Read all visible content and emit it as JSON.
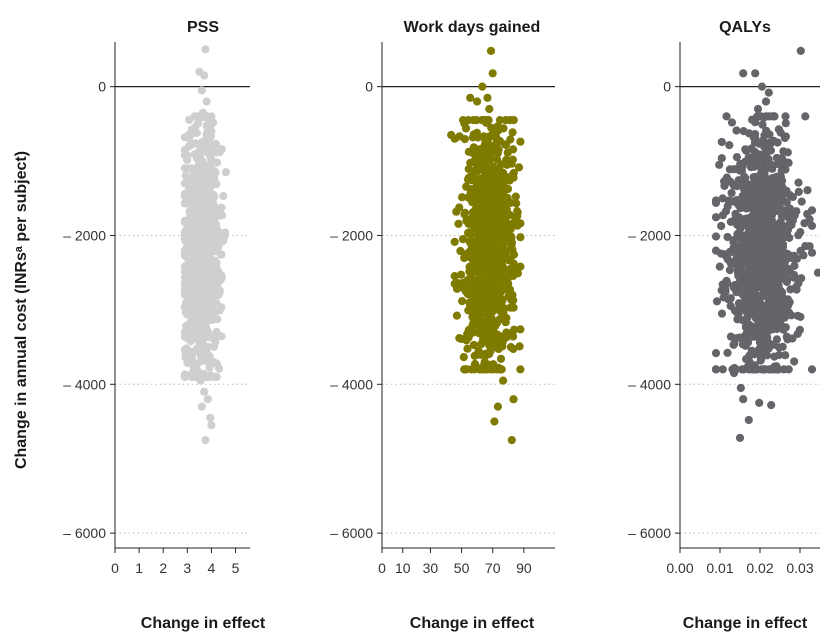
{
  "figure": {
    "ylabel": "Change in annual cost (INRsᵃ per subject)"
  },
  "chart_data": [
    {
      "type": "scatter",
      "title": "PSS",
      "xlabel": "Change in effect",
      "ylabel": "Change in annual cost (INRsᵃ per subject)",
      "xlim": [
        0,
        5.6
      ],
      "ylim": [
        -6200,
        600
      ],
      "xticks": [
        0,
        1,
        2,
        3,
        4,
        5
      ],
      "xtick_labels": [
        "0",
        "1",
        "2",
        "3",
        "4",
        "5"
      ],
      "yticks": [
        0,
        -2000,
        -4000,
        -6000
      ],
      "ytick_labels": [
        "0",
        "– 2000",
        "– 4000",
        "– 6000"
      ],
      "grid": "dotted horizontal at y ticks",
      "reference_line": 0,
      "color": "#cfcfcf",
      "cloud": {
        "x_center": 3.6,
        "x_spread": 0.38,
        "x_min": 2.9,
        "x_max": 4.6,
        "y_center": -2200,
        "y_spread": 820,
        "y_min": -3900,
        "y_max": -400
      },
      "outliers": [
        {
          "x": 3.75,
          "y": 500
        },
        {
          "x": 3.5,
          "y": 200
        },
        {
          "x": 3.7,
          "y": 150
        },
        {
          "x": 3.6,
          "y": -50
        },
        {
          "x": 3.8,
          "y": -200
        },
        {
          "x": 3.65,
          "y": -350
        },
        {
          "x": 4.6,
          "y": -1150
        },
        {
          "x": 3.55,
          "y": -3950
        },
        {
          "x": 3.7,
          "y": -4100
        },
        {
          "x": 3.85,
          "y": -4200
        },
        {
          "x": 3.6,
          "y": -4300
        },
        {
          "x": 3.95,
          "y": -4450
        },
        {
          "x": 4.0,
          "y": -4550
        },
        {
          "x": 3.75,
          "y": -4750
        }
      ]
    },
    {
      "type": "scatter",
      "title": "Work days gained",
      "xlabel": "Change in effect",
      "ylabel": "",
      "xlim": [
        0,
        100
      ],
      "ylim": [
        -6200,
        600
      ],
      "xticks": [
        0,
        10,
        30,
        50,
        70,
        90
      ],
      "xtick_labels": [
        "0",
        "10",
        "30",
        "50",
        "70",
        "90"
      ],
      "xtick_positions": [
        0,
        12,
        28,
        46,
        64,
        82
      ],
      "yticks": [
        0,
        -2000,
        -4000,
        -6000
      ],
      "ytick_labels": [
        "0",
        "– 2000",
        "– 4000",
        "– 6000"
      ],
      "grid": "dotted horizontal at y ticks",
      "reference_line": 0,
      "color": "#7f7a00",
      "cloud": {
        "x_center": 62,
        "x_spread": 7,
        "x_min": 42,
        "x_max": 80,
        "y_center": -2150,
        "y_spread": 800,
        "y_min": -3800,
        "y_max": -450
      },
      "outliers": [
        {
          "x": 63,
          "y": 480
        },
        {
          "x": 64,
          "y": 180
        },
        {
          "x": 58,
          "y": 0
        },
        {
          "x": 51,
          "y": -150
        },
        {
          "x": 55,
          "y": -200
        },
        {
          "x": 61,
          "y": -150
        },
        {
          "x": 62,
          "y": -300
        },
        {
          "x": 40,
          "y": -650
        },
        {
          "x": 42,
          "y": -700
        },
        {
          "x": 80,
          "y": -3800
        },
        {
          "x": 70,
          "y": -3950
        },
        {
          "x": 76,
          "y": -4200
        },
        {
          "x": 67,
          "y": -4300
        },
        {
          "x": 65,
          "y": -4500
        },
        {
          "x": 75,
          "y": -4750
        }
      ]
    },
    {
      "type": "scatter",
      "title": "QALYs",
      "xlabel": "Change in effect",
      "ylabel": "",
      "xlim": [
        0,
        0.035
      ],
      "ylim": [
        -6200,
        600
      ],
      "xticks": [
        0,
        0.01,
        0.02,
        0.03
      ],
      "xtick_labels": [
        "0.00",
        "0.01",
        "0.02",
        "0.03"
      ],
      "yticks": [
        0,
        -2000,
        -4000,
        -6000
      ],
      "ytick_labels": [
        "0",
        "– 2000",
        "– 4000",
        "– 6000"
      ],
      "grid": "dotted horizontal at y ticks",
      "reference_line": 0,
      "color": "#646469",
      "cloud": {
        "x_center": 0.0205,
        "x_spread": 0.0045,
        "x_min": 0.009,
        "x_max": 0.033,
        "y_center": -2250,
        "y_spread": 860,
        "y_min": -3800,
        "y_max": -400
      },
      "outliers": [
        {
          "x": 0.0302,
          "y": 480
        },
        {
          "x": 0.0158,
          "y": 180
        },
        {
          "x": 0.0188,
          "y": 180
        },
        {
          "x": 0.0205,
          "y": 0
        },
        {
          "x": 0.0222,
          "y": -80
        },
        {
          "x": 0.0215,
          "y": -200
        },
        {
          "x": 0.0195,
          "y": -300
        },
        {
          "x": 0.0098,
          "y": -1050
        },
        {
          "x": 0.0345,
          "y": -2500
        },
        {
          "x": 0.0105,
          "y": -3050
        },
        {
          "x": 0.0135,
          "y": -3850
        },
        {
          "x": 0.0152,
          "y": -4050
        },
        {
          "x": 0.0158,
          "y": -4200
        },
        {
          "x": 0.0198,
          "y": -4250
        },
        {
          "x": 0.0228,
          "y": -4280
        },
        {
          "x": 0.0172,
          "y": -4480
        },
        {
          "x": 0.015,
          "y": -4720
        }
      ]
    }
  ]
}
